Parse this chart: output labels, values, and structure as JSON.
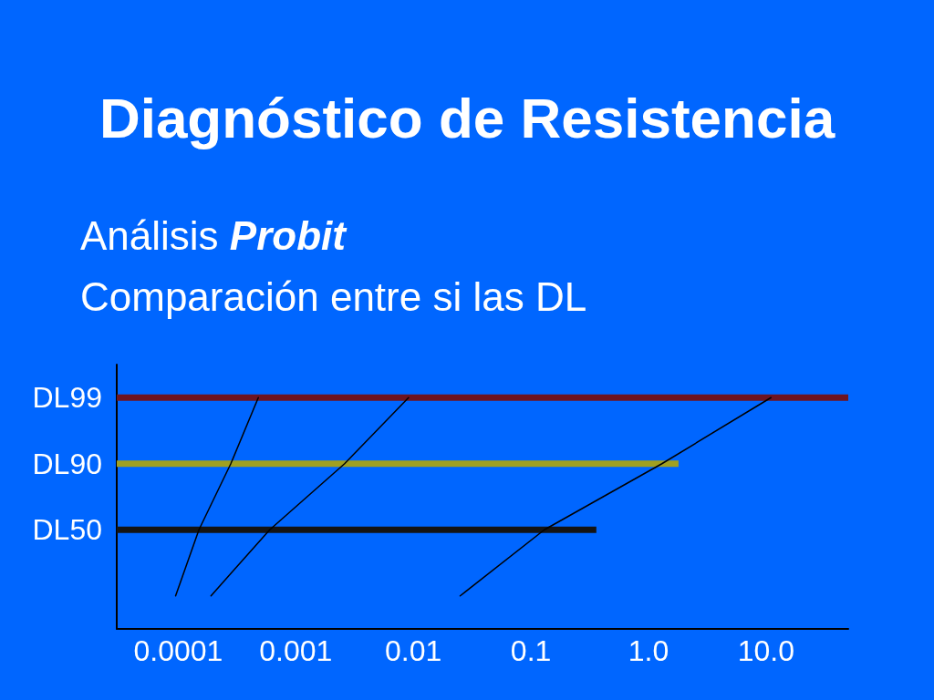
{
  "chart_data": {
    "type": "bar",
    "orientation": "horizontal",
    "log": "x",
    "title": "Diagnóstico de Resistencia",
    "subtitle": "Análisis Probit\nComparación entre si las DL",
    "categories": [
      "DL99",
      "DL90",
      "DL50",
      null
    ],
    "xlim": [
      3e-05,
      50
    ],
    "xticks": [
      0.0001,
      0.001,
      0.01,
      0.1,
      {
        "value": 1,
        "label": "1.0"
      },
      {
        "value": 10,
        "label": "10.0"
      }
    ],
    "marker": "none",
    "series": [
      {
        "colors": [
          "#6e1420",
          "#a0a020",
          "#141414",
          null
        ],
        "values": [
          50,
          1.8,
          0.36,
          null
        ]
      },
      {
        "type": "line",
        "color": "#000000",
        "values": [
          0.00048,
          0.00028,
          0.00015,
          9.5e-05
        ]
      },
      {
        "type": "line",
        "color": "#000000",
        "values": [
          0.0091,
          0.0026,
          0.0006,
          0.00019
        ]
      },
      {
        "type": "line",
        "color": "#000000",
        "values": [
          11,
          1.3,
          0.13,
          0.025
        ]
      }
    ]
  }
}
